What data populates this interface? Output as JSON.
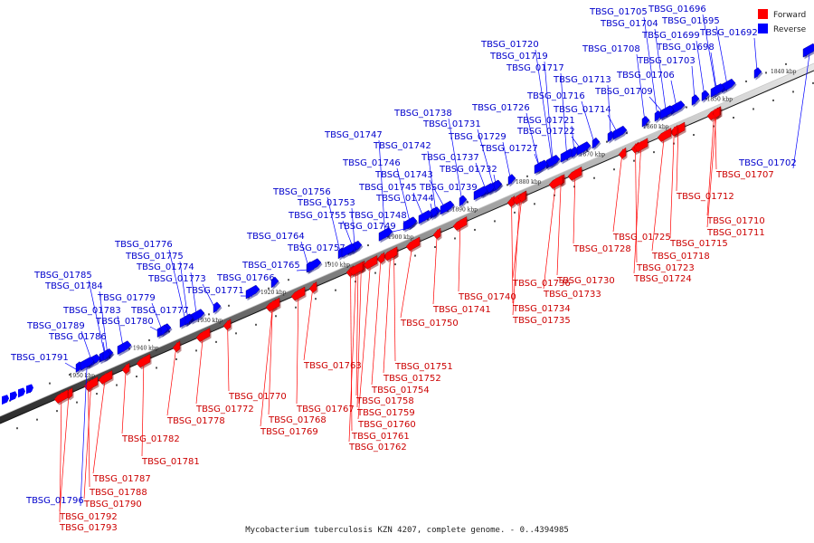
{
  "legend": [
    {
      "label": "Forward",
      "color": "#ff0000"
    },
    {
      "label": "Reverse",
      "color": "#0000ff"
    }
  ],
  "caption": "Mycobacterium tuberculosis KZN 4207, complete genome. - 0..4394985",
  "ticks": [
    {
      "kbp": 1840,
      "label": "1840 kbp"
    },
    {
      "kbp": 1850,
      "label": "1850 kbp"
    },
    {
      "kbp": 1860,
      "label": "1860 kbp"
    },
    {
      "kbp": 1870,
      "label": "1870 kbp"
    },
    {
      "kbp": 1880,
      "label": "1880 kbp"
    },
    {
      "kbp": 1890,
      "label": "1890 kbp"
    },
    {
      "kbp": 1900,
      "label": "1900 kbp"
    },
    {
      "kbp": 1910,
      "label": "1910 kbp"
    },
    {
      "kbp": 1920,
      "label": "1920 kbp"
    },
    {
      "kbp": 1930,
      "label": "1930 kbp"
    },
    {
      "kbp": 1940,
      "label": "1940 kbp"
    },
    {
      "kbp": 1950,
      "label": "1950 kbp"
    }
  ],
  "reverse_genes": [
    "TBSG_01692",
    "TBSG_01695",
    "TBSG_01696",
    "TBSG_01698",
    "TBSG_01699",
    "TBSG_01702",
    "TBSG_01703",
    "TBSG_01704",
    "TBSG_01705",
    "TBSG_01706",
    "TBSG_01708",
    "TBSG_01709",
    "TBSG_01713",
    "TBSG_01714",
    "TBSG_01716",
    "TBSG_01717",
    "TBSG_01719",
    "TBSG_01720",
    "TBSG_01721",
    "TBSG_01722",
    "TBSG_01726",
    "TBSG_01727",
    "TBSG_01729",
    "TBSG_01731",
    "TBSG_01732",
    "TBSG_01737",
    "TBSG_01738",
    "TBSG_01739",
    "TBSG_01742",
    "TBSG_01743",
    "TBSG_01744",
    "TBSG_01745",
    "TBSG_01746",
    "TBSG_01747",
    "TBSG_01748",
    "TBSG_01749",
    "TBSG_01753",
    "TBSG_01755",
    "TBSG_01756",
    "TBSG_01757",
    "TBSG_01764",
    "TBSG_01765",
    "TBSG_01766",
    "TBSG_01771",
    "TBSG_01773",
    "TBSG_01774",
    "TBSG_01775",
    "TBSG_01776",
    "TBSG_01777",
    "TBSG_01779",
    "TBSG_01780",
    "TBSG_01783",
    "TBSG_01784",
    "TBSG_01785",
    "TBSG_01786",
    "TBSG_01789",
    "TBSG_01791",
    "TBSG_01796"
  ],
  "forward_genes": [
    "TBSG_01707",
    "TBSG_01710",
    "TBSG_01711",
    "TBSG_01712",
    "TBSG_01715",
    "TBSG_01718",
    "TBSG_01723",
    "TBSG_01724",
    "TBSG_01725",
    "TBSG_01728",
    "TBSG_01730",
    "TBSG_01733",
    "TBSG_01734",
    "TBSG_01735",
    "TBSG_01736",
    "TBSG_01740",
    "TBSG_01741",
    "TBSG_01750",
    "TBSG_01751",
    "TBSG_01752",
    "TBSG_01754",
    "TBSG_01758",
    "TBSG_01759",
    "TBSG_01760",
    "TBSG_01761",
    "TBSG_01762",
    "TBSG_01763",
    "TBSG_01767",
    "TBSG_01768",
    "TBSG_01769",
    "TBSG_01770",
    "TBSG_01772",
    "TBSG_01778",
    "TBSG_01781",
    "TBSG_01782",
    "TBSG_01787",
    "TBSG_01788",
    "TBSG_01790",
    "TBSG_01792",
    "TBSG_01793"
  ]
}
